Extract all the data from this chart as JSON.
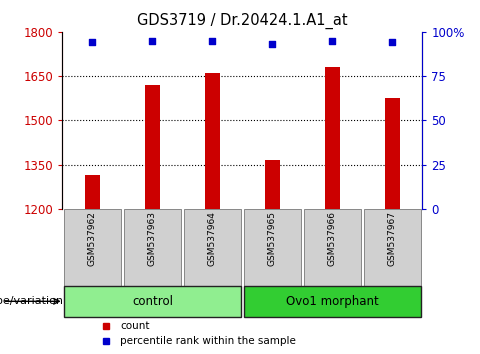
{
  "title": "GDS3719 / Dr.20424.1.A1_at",
  "samples": [
    "GSM537962",
    "GSM537963",
    "GSM537964",
    "GSM537965",
    "GSM537966",
    "GSM537967"
  ],
  "counts": [
    1315,
    1620,
    1660,
    1365,
    1680,
    1575
  ],
  "percentiles": [
    94,
    95,
    95,
    93,
    95,
    94
  ],
  "ylim_left": [
    1200,
    1800
  ],
  "ylim_right": [
    0,
    100
  ],
  "yticks_left": [
    1200,
    1350,
    1500,
    1650,
    1800
  ],
  "yticks_right": [
    0,
    25,
    50,
    75,
    100
  ],
  "ytick_labels_right": [
    "0",
    "25",
    "50",
    "75",
    "100%"
  ],
  "bar_color": "#cc0000",
  "dot_color": "#0000cc",
  "groups": [
    {
      "label": "control",
      "indices": [
        0,
        1,
        2
      ],
      "color": "#90ee90"
    },
    {
      "label": "Ovo1 morphant",
      "indices": [
        3,
        4,
        5
      ],
      "color": "#32cd32"
    }
  ],
  "legend_items": [
    {
      "label": "count",
      "color": "#cc0000"
    },
    {
      "label": "percentile rank within the sample",
      "color": "#0000cc"
    }
  ],
  "xlabel": "genotype/variation",
  "tick_color_left": "#cc0000",
  "tick_color_right": "#0000cc",
  "bar_width": 0.25,
  "xlim": [
    -0.5,
    5.5
  ]
}
